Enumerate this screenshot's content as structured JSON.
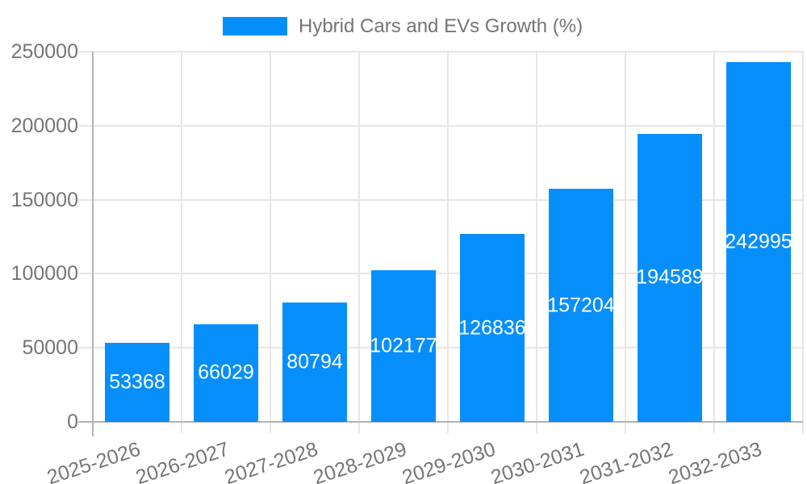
{
  "chart_data": {
    "type": "bar",
    "legend_label": "Hybrid Cars and EVs Growth (%)",
    "legend_position": "top",
    "categories": [
      "2025-2026",
      "2026-2027",
      "2027-2028",
      "2028-2029",
      "2029-2030",
      "2030-2031",
      "2031-2032",
      "2032-2033"
    ],
    "values": [
      53368,
      66029,
      80794,
      102177,
      126836,
      157204,
      194589,
      242995
    ],
    "title": "",
    "xlabel": "",
    "ylabel": "",
    "ylim": [
      0,
      250000
    ],
    "yticks": [
      0,
      50000,
      100000,
      150000,
      200000,
      250000
    ],
    "grid": true,
    "bar_labels_visible": true,
    "colors": {
      "bar": "#068ffb",
      "bar_label_text": "#ffffff",
      "axis_text": "#757575",
      "grid_line": "#e6e6e6",
      "axis_line": "#b3b3b3",
      "background": "#ffffff"
    }
  }
}
